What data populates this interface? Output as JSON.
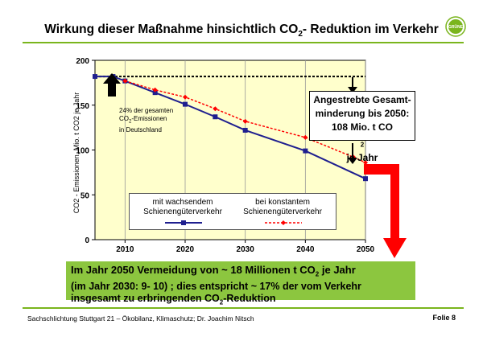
{
  "title": {
    "part1": "Wirkung dieser Maßnahme hinsichtlich CO",
    "sub": "2",
    "part2": "- Reduktion im Verkehr"
  },
  "logo_text": "GRÜNE",
  "callout": {
    "line1": "Angestrebte Gesamt-",
    "line2": "minderung bis 2050:",
    "line3a": "108 Mio. t CO",
    "line3sub": "2",
    "line3b": " je Jahr"
  },
  "share_note": {
    "line1": "24% der gesamten",
    "line2a": "CO",
    "line2sub": "2",
    "line2b": "-Emissionen",
    "line3": "in Deutschland"
  },
  "legend": {
    "series1_line1": "mit wachsendem",
    "series1_line2": "Schienengüterverkehr",
    "series2_line1": "bei konstantem",
    "series2_line2": "Schienengüterverkehr"
  },
  "green_box": {
    "l1a": "Im Jahr 2050 Vermeidung von ~ 18 Millionen t CO",
    "l1sub": "2",
    "l1b": " je Jahr",
    "l2": "(im Jahr 2030: 9- 10) ; dies entspricht ~ 17% der vom Verkehr",
    "l3a": "insgesamt zu erbringenden CO",
    "l3sub": "2",
    "l3b": "-Reduktion"
  },
  "footer": {
    "left": "Sachschlichtung Stuttgart 21 – Ökobilanz, Klimaschutz; Dr. Joachim Nitsch",
    "right": "Folie 8"
  },
  "colors": {
    "plot_bg": "#ffffcc",
    "series1": "#1f1f8f",
    "series2": "#ff0000",
    "arrow_red": "#ff0000",
    "accent_green": "#7ab51d",
    "box_green": "#8cc63f"
  },
  "chart_data": {
    "type": "line",
    "ylabel": "CO2 - Emissionen, Mio. t CO2 je Jahr",
    "xlabel": "",
    "xlim": [
      2005,
      2050
    ],
    "ylim": [
      0,
      200
    ],
    "xticks": [
      2010,
      2020,
      2030,
      2040,
      2050
    ],
    "yticks": [
      0,
      50,
      100,
      150,
      200
    ],
    "reference_level": 182,
    "series": [
      {
        "name": "mit wachsendem Schienengüterverkehr",
        "x": [
          2005,
          2008,
          2010,
          2015,
          2020,
          2025,
          2030,
          2040,
          2050
        ],
        "y": [
          182,
          182,
          177,
          164,
          151,
          137,
          122,
          99,
          68
        ]
      },
      {
        "name": "bei konstantem Schienengüterverkehr",
        "x": [
          2010,
          2015,
          2020,
          2025,
          2030,
          2040,
          2048,
          2050
        ],
        "y": [
          177,
          167,
          159,
          146,
          132,
          114,
          92,
          86
        ]
      }
    ]
  }
}
